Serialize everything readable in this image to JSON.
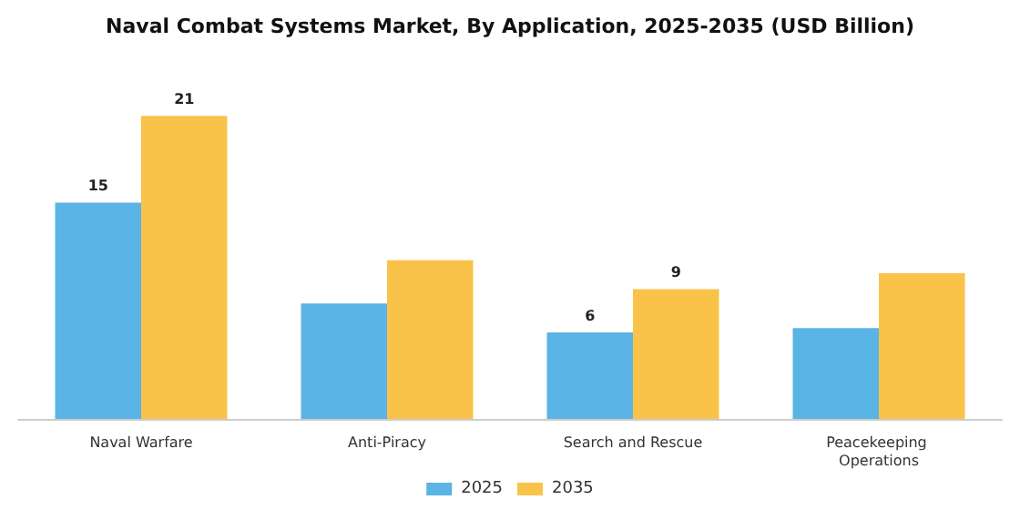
{
  "chart_data": {
    "type": "bar",
    "title": "Naval Combat Systems Market, By Application, 2025-2035 (USD Billion)",
    "categories": [
      "Naval Warfare",
      "Anti-Piracy",
      "Search and Rescue",
      "Peacekeeping Operations"
    ],
    "series": [
      {
        "name": "2025",
        "color": "#5ab4e5",
        "values": [
          15,
          8,
          6,
          6.3
        ],
        "value_labels": [
          "15",
          null,
          "6",
          null
        ]
      },
      {
        "name": "2035",
        "color": "#f9c34a",
        "values": [
          21,
          11,
          9,
          10.1
        ],
        "value_labels": [
          "21",
          null,
          "9",
          null
        ]
      }
    ],
    "legend": "bottom"
  }
}
